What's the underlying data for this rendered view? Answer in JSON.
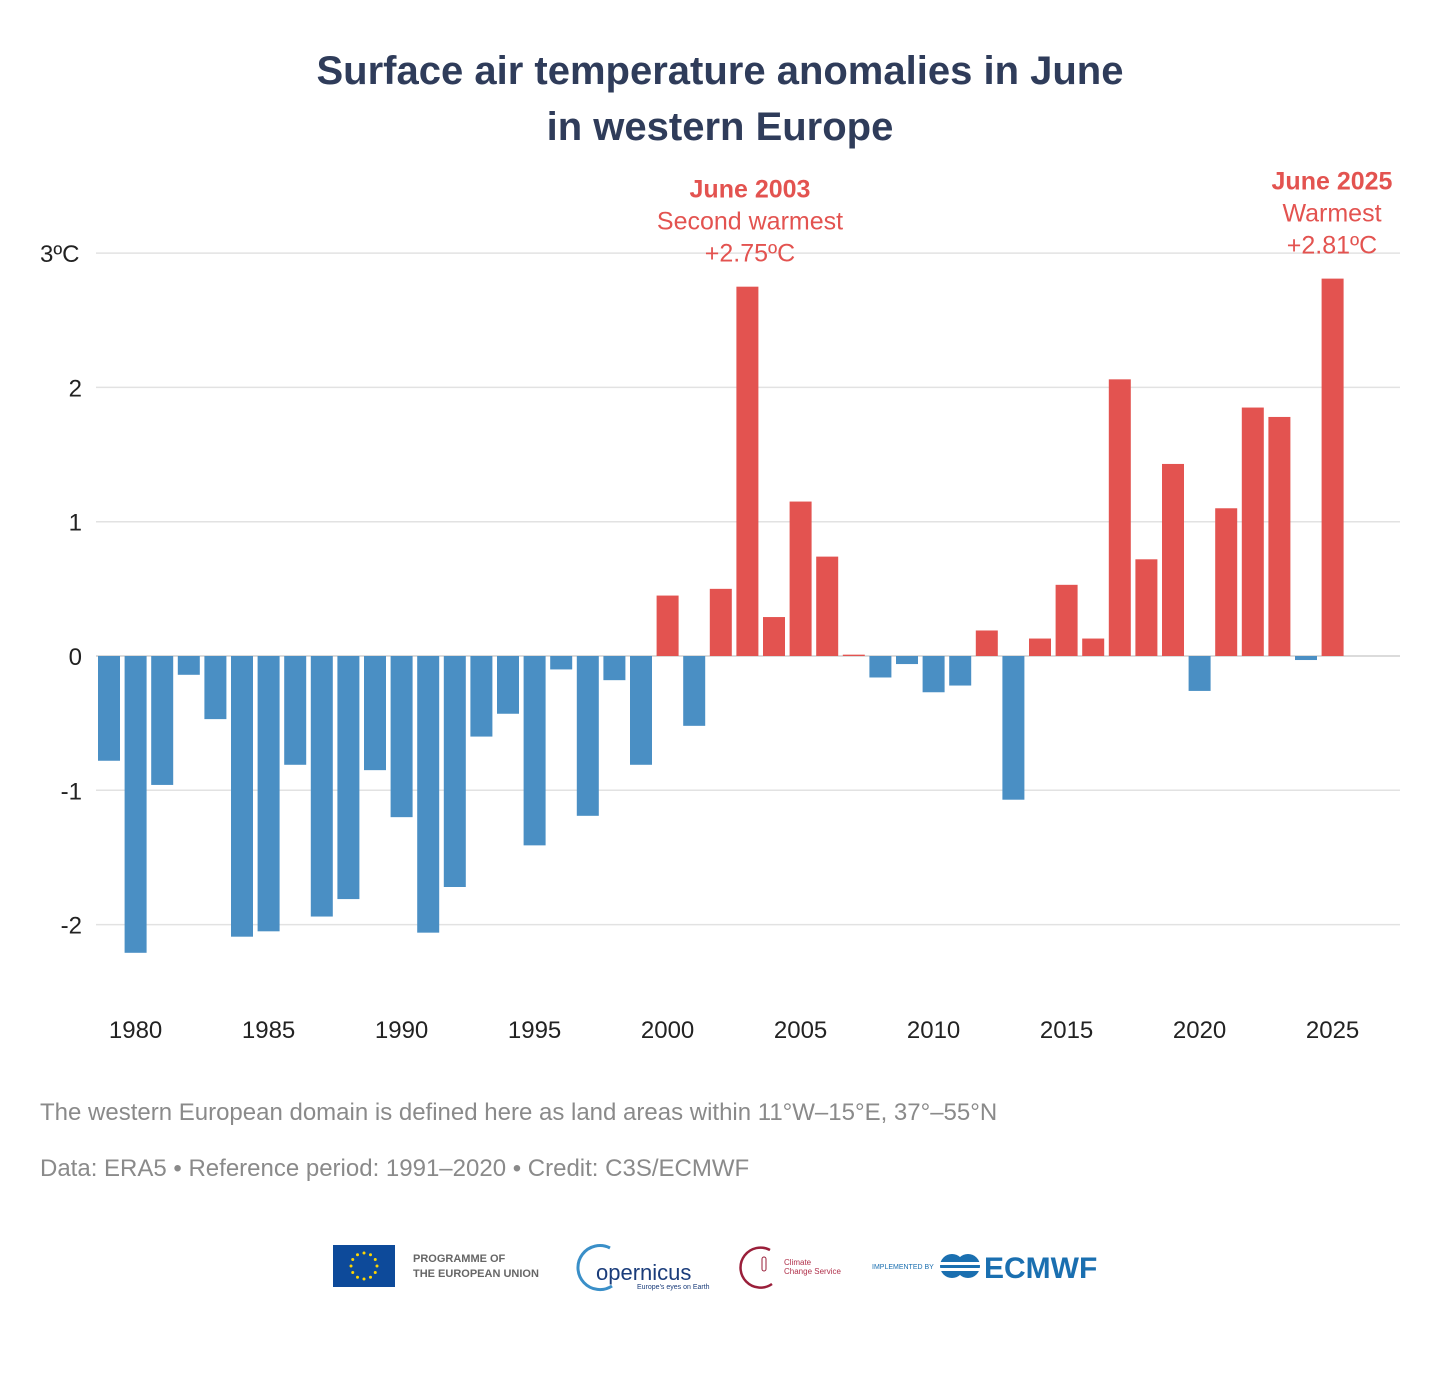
{
  "chart_data": {
    "type": "bar",
    "title_line1": "Surface air temperature anomalies in June",
    "title_line2": "in western Europe",
    "x": [
      1979,
      1980,
      1981,
      1982,
      1983,
      1984,
      1985,
      1986,
      1987,
      1988,
      1989,
      1990,
      1991,
      1992,
      1993,
      1994,
      1995,
      1996,
      1997,
      1998,
      1999,
      2000,
      2001,
      2002,
      2003,
      2004,
      2005,
      2006,
      2007,
      2008,
      2009,
      2010,
      2011,
      2012,
      2013,
      2014,
      2015,
      2016,
      2017,
      2018,
      2019,
      2020,
      2021,
      2022,
      2023,
      2024,
      2025
    ],
    "values": [
      -0.78,
      -2.21,
      -0.96,
      -0.14,
      -0.47,
      -2.09,
      -2.05,
      -0.81,
      -1.94,
      -1.81,
      -0.85,
      -1.2,
      -2.06,
      -1.72,
      -0.6,
      -0.43,
      -1.41,
      -0.1,
      -1.19,
      -0.18,
      -0.81,
      0.45,
      -0.52,
      0.5,
      2.75,
      0.29,
      1.15,
      0.74,
      0.01,
      -0.16,
      -0.06,
      -0.27,
      -0.22,
      0.19,
      -1.07,
      0.13,
      0.53,
      0.13,
      2.06,
      0.72,
      1.43,
      -0.26,
      1.1,
      1.85,
      1.78,
      -0.03,
      2.81
    ],
    "ylim": [
      -2.5,
      3.3
    ],
    "yticks": [
      {
        "v": 3,
        "label": "3ºC"
      },
      {
        "v": 2,
        "label": "2"
      },
      {
        "v": 1,
        "label": "1"
      },
      {
        "v": 0,
        "label": "0"
      },
      {
        "v": -1,
        "label": "-1"
      },
      {
        "v": -2,
        "label": "-2"
      }
    ],
    "xticks": [
      1980,
      1985,
      1990,
      1995,
      2000,
      2005,
      2010,
      2015,
      2020,
      2025
    ],
    "grid": true,
    "colors": {
      "positive": "#e35350",
      "negative": "#4a8fc4",
      "title": "#2f3c5a",
      "grid": "#e2e2e2"
    },
    "annotations": [
      {
        "year": 2003,
        "line1": "June 2003",
        "line2": "Second warmest",
        "line3": "+2.75ºC"
      },
      {
        "year": 2025,
        "line1": "June 2025",
        "line2": "Warmest",
        "line3": "+2.81ºC"
      }
    ]
  },
  "notes": {
    "domain": "The western European domain is defined here as land areas within 11°W–15°E, 37°–55°N",
    "credit": "Data: ERA5 • Reference period: 1991–2020 • Credit: C3S/ECMWF"
  },
  "logos": {
    "eu": "PROGRAMME OF THE EUROPEAN UNION",
    "eu_line1": "PROGRAMME OF",
    "eu_line2": "THE EUROPEAN UNION",
    "copernicus": "opernicus",
    "copernicus_tagline": "Europe's eyes on Earth",
    "c3s_line1": "Climate",
    "c3s_line2": "Change Service",
    "implemented_by": "IMPLEMENTED BY",
    "ecmwf": "ECMWF"
  }
}
